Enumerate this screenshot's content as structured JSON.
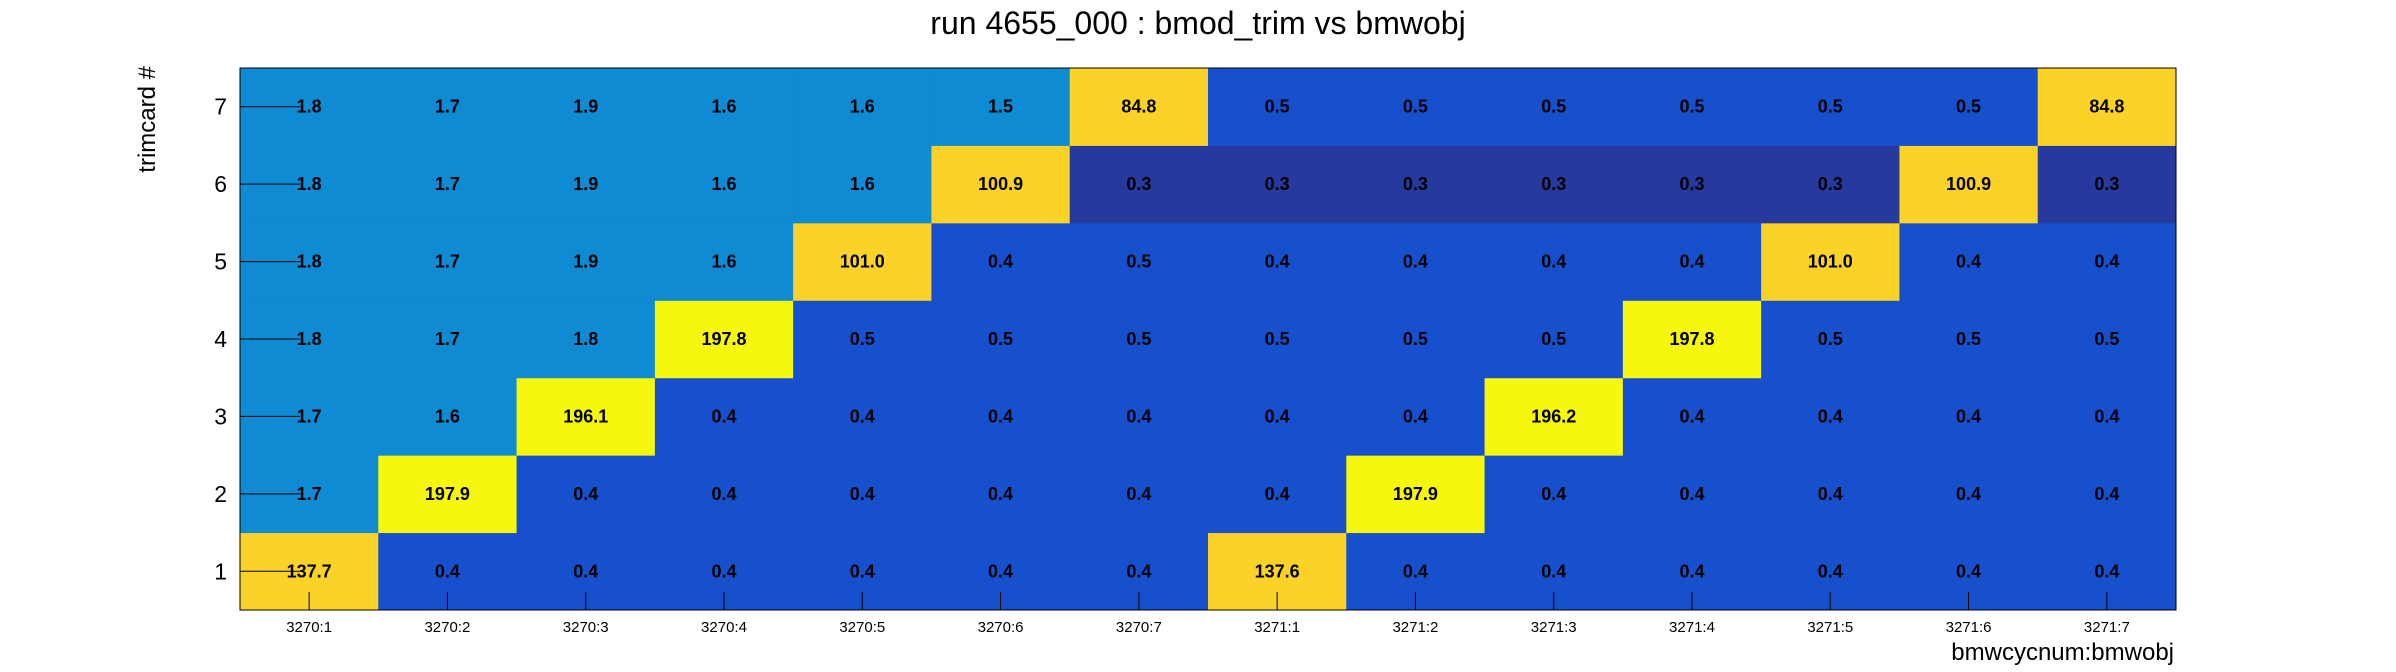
{
  "chart_data": {
    "type": "heatmap",
    "title": "run 4655_000 : bmod_trim vs bmwobj",
    "xlabel": "bmwcycnum:bmwobj",
    "ylabel": "trimcard #",
    "x_categories": [
      "3270:1",
      "3270:2",
      "3270:3",
      "3270:4",
      "3270:5",
      "3270:6",
      "3270:7",
      "3271:1",
      "3271:2",
      "3271:3",
      "3271:4",
      "3271:5",
      "3271:6",
      "3271:7"
    ],
    "y_categories": [
      "1",
      "2",
      "3",
      "4",
      "5",
      "6",
      "7"
    ],
    "values": [
      [
        137.7,
        0.4,
        0.4,
        0.4,
        0.4,
        0.4,
        0.4,
        137.6,
        0.4,
        0.4,
        0.4,
        0.4,
        0.4,
        0.4
      ],
      [
        1.7,
        197.9,
        0.4,
        0.4,
        0.4,
        0.4,
        0.4,
        0.4,
        197.9,
        0.4,
        0.4,
        0.4,
        0.4,
        0.4
      ],
      [
        1.7,
        1.6,
        196.1,
        0.4,
        0.4,
        0.4,
        0.4,
        0.4,
        0.4,
        196.2,
        0.4,
        0.4,
        0.4,
        0.4
      ],
      [
        1.8,
        1.7,
        1.8,
        197.8,
        0.5,
        0.5,
        0.5,
        0.5,
        0.5,
        0.5,
        197.8,
        0.5,
        0.5,
        0.5
      ],
      [
        1.8,
        1.7,
        1.9,
        1.6,
        101.0,
        0.4,
        0.5,
        0.4,
        0.4,
        0.4,
        0.4,
        101.0,
        0.4,
        0.4
      ],
      [
        1.8,
        1.7,
        1.9,
        1.6,
        1.6,
        100.9,
        0.3,
        0.3,
        0.3,
        0.3,
        0.3,
        0.3,
        100.9,
        0.3
      ],
      [
        1.8,
        1.7,
        1.9,
        1.6,
        1.6,
        1.5,
        84.8,
        0.5,
        0.5,
        0.5,
        0.5,
        0.5,
        0.5,
        84.8
      ]
    ],
    "value_format": "1 decimal",
    "colors": {
      "very_low": "#263a9e",
      "low": "#1650cd",
      "mid_low": "#0f8bd3",
      "medium": "#fbd228",
      "high": "#f6f70f"
    },
    "grid": false,
    "legend": "none"
  }
}
